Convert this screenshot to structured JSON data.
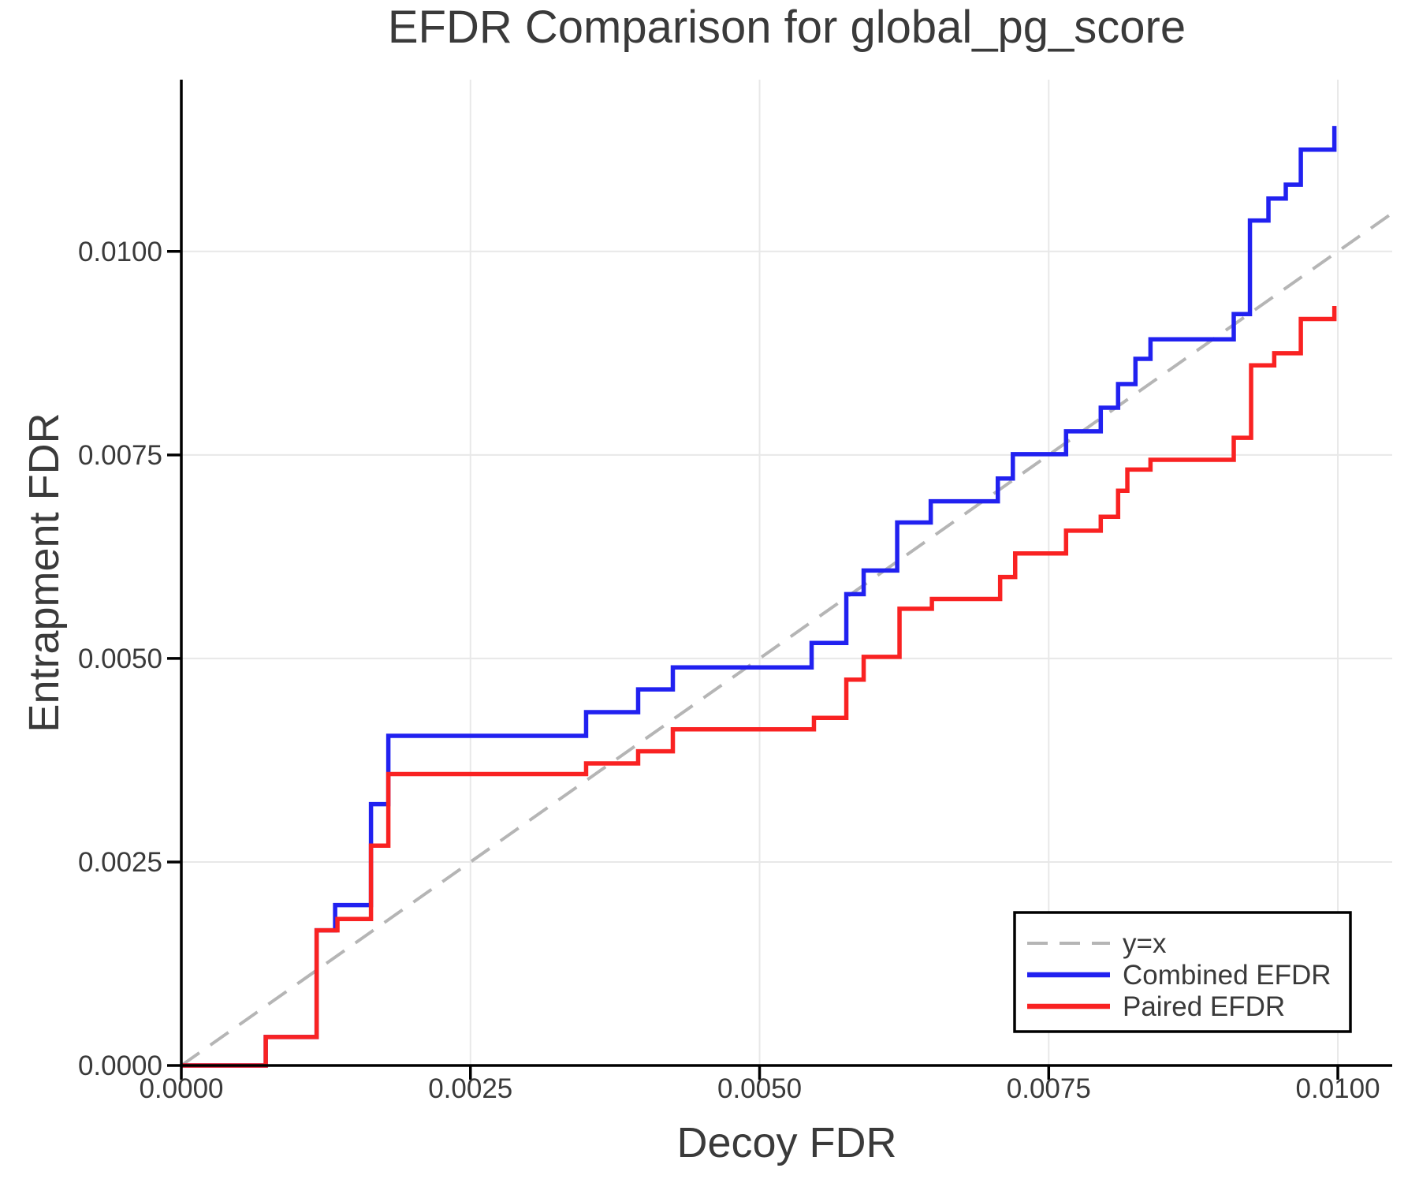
{
  "figure": {
    "title": "EFDR Comparison for global_pg_score"
  },
  "chart_data": {
    "type": "line",
    "title": "EFDR Comparison for global_pg_score",
    "xlabel": "Decoy FDR",
    "ylabel": "Entrapment FDR",
    "xlim": [
      0,
      0.01047
    ],
    "ylim": [
      0,
      0.01211
    ],
    "grid": true,
    "legend": {
      "position": "lower-right",
      "entries": [
        "y=x",
        "Combined EFDR",
        "Paired EFDR"
      ]
    },
    "xticks": {
      "values": [
        0,
        0.0025,
        0.005,
        0.0075,
        0.01
      ],
      "labels": [
        "0.0000",
        "0.0025",
        "0.0050",
        "0.0075",
        "0.0100"
      ]
    },
    "yticks": {
      "values": [
        0,
        0.0025,
        0.005,
        0.0075,
        0.01
      ],
      "labels": [
        "0.0000",
        "0.0025",
        "0.0050",
        "0.0075",
        "0.0100"
      ]
    },
    "series": [
      {
        "name": "y=x",
        "role": "reference-line",
        "color": "#b5b5b5",
        "dashed": true,
        "width": 4,
        "interpolation": "linear",
        "points": [
          [
            0,
            0
          ],
          [
            0.01047,
            0.01047
          ]
        ]
      },
      {
        "name": "Combined EFDR",
        "role": "efdr-curve",
        "color": "#2121f0",
        "dashed": false,
        "width": 5.5,
        "interpolation": "step-post",
        "points": [
          [
            0,
            0
          ],
          [
            0.00073,
            0.00035
          ],
          [
            0.00117,
            0.00166
          ],
          [
            0.00133,
            0.00197
          ],
          [
            0.00164,
            0.00321
          ],
          [
            0.00179,
            0.00405
          ],
          [
            0.0035,
            0.00434
          ],
          [
            0.00395,
            0.00462
          ],
          [
            0.00425,
            0.00489
          ],
          [
            0.00545,
            0.00519
          ],
          [
            0.00575,
            0.00579
          ],
          [
            0.0059,
            0.00608
          ],
          [
            0.00619,
            0.00667
          ],
          [
            0.00648,
            0.00693
          ],
          [
            0.00706,
            0.00721
          ],
          [
            0.00719,
            0.00751
          ],
          [
            0.00765,
            0.00779
          ],
          [
            0.00795,
            0.00808
          ],
          [
            0.0081,
            0.00837
          ],
          [
            0.00825,
            0.00868
          ],
          [
            0.00838,
            0.00892
          ],
          [
            0.0091,
            0.00923
          ],
          [
            0.00924,
            0.01038
          ],
          [
            0.0094,
            0.01065
          ],
          [
            0.00955,
            0.01082
          ],
          [
            0.00968,
            0.01125
          ],
          [
            0.00997,
            0.01154
          ]
        ]
      },
      {
        "name": "Paired EFDR",
        "role": "efdr-curve",
        "color": "#f92222",
        "dashed": false,
        "width": 5.5,
        "interpolation": "step-post",
        "points": [
          [
            0,
            0
          ],
          [
            0.00073,
            0.00035
          ],
          [
            0.00117,
            0.00166
          ],
          [
            0.00135,
            0.0018
          ],
          [
            0.00164,
            0.0027
          ],
          [
            0.00179,
            0.00358
          ],
          [
            0.0035,
            0.00371
          ],
          [
            0.00395,
            0.00386
          ],
          [
            0.00425,
            0.00413
          ],
          [
            0.00547,
            0.00427
          ],
          [
            0.00575,
            0.00474
          ],
          [
            0.0059,
            0.00502
          ],
          [
            0.00621,
            0.00561
          ],
          [
            0.00649,
            0.00573
          ],
          [
            0.00708,
            0.006
          ],
          [
            0.00721,
            0.00629
          ],
          [
            0.00765,
            0.00657
          ],
          [
            0.00795,
            0.00674
          ],
          [
            0.0081,
            0.00706
          ],
          [
            0.00818,
            0.00732
          ],
          [
            0.00838,
            0.00744
          ],
          [
            0.0091,
            0.00771
          ],
          [
            0.00925,
            0.0086
          ],
          [
            0.00945,
            0.00875
          ],
          [
            0.00968,
            0.00917
          ],
          [
            0.00997,
            0.00933
          ]
        ]
      }
    ]
  },
  "colors": {
    "background": "#ffffff",
    "grid": "#e8e8e8",
    "spine": "#000000",
    "tick": "#000000",
    "text": "#3a3a3a",
    "legend_border": "#000000",
    "legend_background": "#ffffff"
  }
}
